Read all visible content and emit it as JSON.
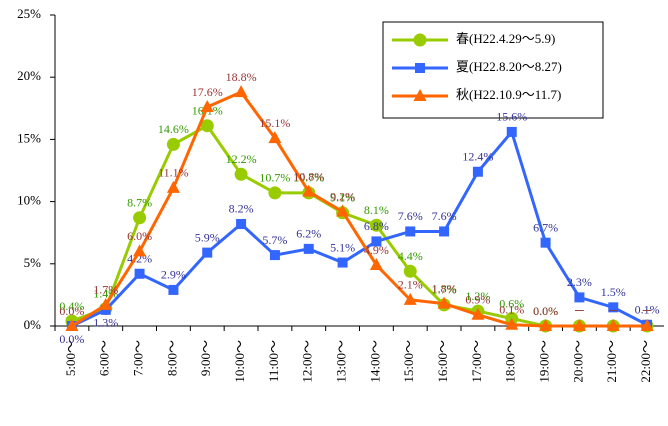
{
  "chart_data": {
    "type": "line",
    "categories": [
      "5:00〜",
      "6:00〜",
      "7:00〜",
      "8:00〜",
      "9:00〜",
      "10:00〜",
      "11:00〜",
      "12:00〜",
      "13:00〜",
      "14:00〜",
      "15:00〜",
      "16:00〜",
      "17:00〜",
      "18:00〜",
      "19:00〜",
      "20:00〜",
      "21:00〜",
      "22:00〜"
    ],
    "ylim": [
      0,
      25
    ],
    "yticks": [
      {
        "value": 0,
        "label": "0%"
      },
      {
        "value": 5,
        "label": "5%"
      },
      {
        "value": 10,
        "label": "10%"
      },
      {
        "value": 15,
        "label": "15%"
      },
      {
        "value": 20,
        "label": "20%"
      },
      {
        "value": 25,
        "label": "25%"
      }
    ],
    "grid": false,
    "legend": "top-right",
    "series": [
      {
        "name": "春(H22.4.29〜5.9)",
        "color": "#99cc00",
        "label_color": "#339900",
        "marker": "circle",
        "values": [
          0.4,
          1.4,
          8.7,
          14.6,
          16.1,
          12.2,
          10.7,
          10.7,
          9.1,
          8.1,
          4.4,
          1.7,
          1.2,
          0.6,
          0.0,
          0,
          0,
          0
        ],
        "value_labels": [
          "0.4%",
          "1.4%",
          "8.7%",
          "14.6%",
          "16.1%",
          "12.2%",
          "10.7%",
          "10.7%",
          "9.1%",
          "8.1%",
          "4.4%",
          "1.7%",
          "1.2%",
          "0.6%",
          "0.0%",
          "－",
          "－",
          "－"
        ]
      },
      {
        "name": "夏(H22.8.20〜8.27)",
        "color": "#3366ff",
        "label_color": "#333399",
        "marker": "square",
        "values": [
          0.0,
          1.3,
          4.2,
          2.9,
          5.9,
          8.2,
          5.7,
          6.2,
          5.1,
          6.8,
          7.6,
          7.6,
          12.4,
          15.6,
          6.7,
          2.3,
          1.5,
          0.1
        ],
        "value_labels": [
          "0.0%",
          "1.3%",
          "4.2%",
          "2.9%",
          "5.9%",
          "8.2%",
          "5.7%",
          "6.2%",
          "5.1%",
          "6.8%",
          "7.6%",
          "7.6%",
          "12.4%",
          "15.6%",
          "6.7%",
          "2.3%",
          "1.5%",
          "0.1%"
        ]
      },
      {
        "name": "秋(H22.10.9〜11.7)",
        "color": "#ff6600",
        "label_color": "#993333",
        "marker": "triangle",
        "values": [
          0.0,
          1.7,
          6.0,
          11.1,
          17.6,
          18.8,
          15.1,
          10.8,
          9.2,
          4.9,
          2.1,
          1.8,
          0.9,
          0.1,
          0.0,
          0,
          0,
          0
        ],
        "value_labels": [
          "0.0%",
          "1.7%",
          "6.0%",
          "11.1%",
          "17.6%",
          "18.8%",
          "15.1%",
          "10.8%",
          "9.2%",
          "4.9%",
          "2.1%",
          "1.8%",
          "0.9%",
          "0.1%",
          "0.0%",
          "－",
          "－",
          "－"
        ]
      }
    ]
  }
}
